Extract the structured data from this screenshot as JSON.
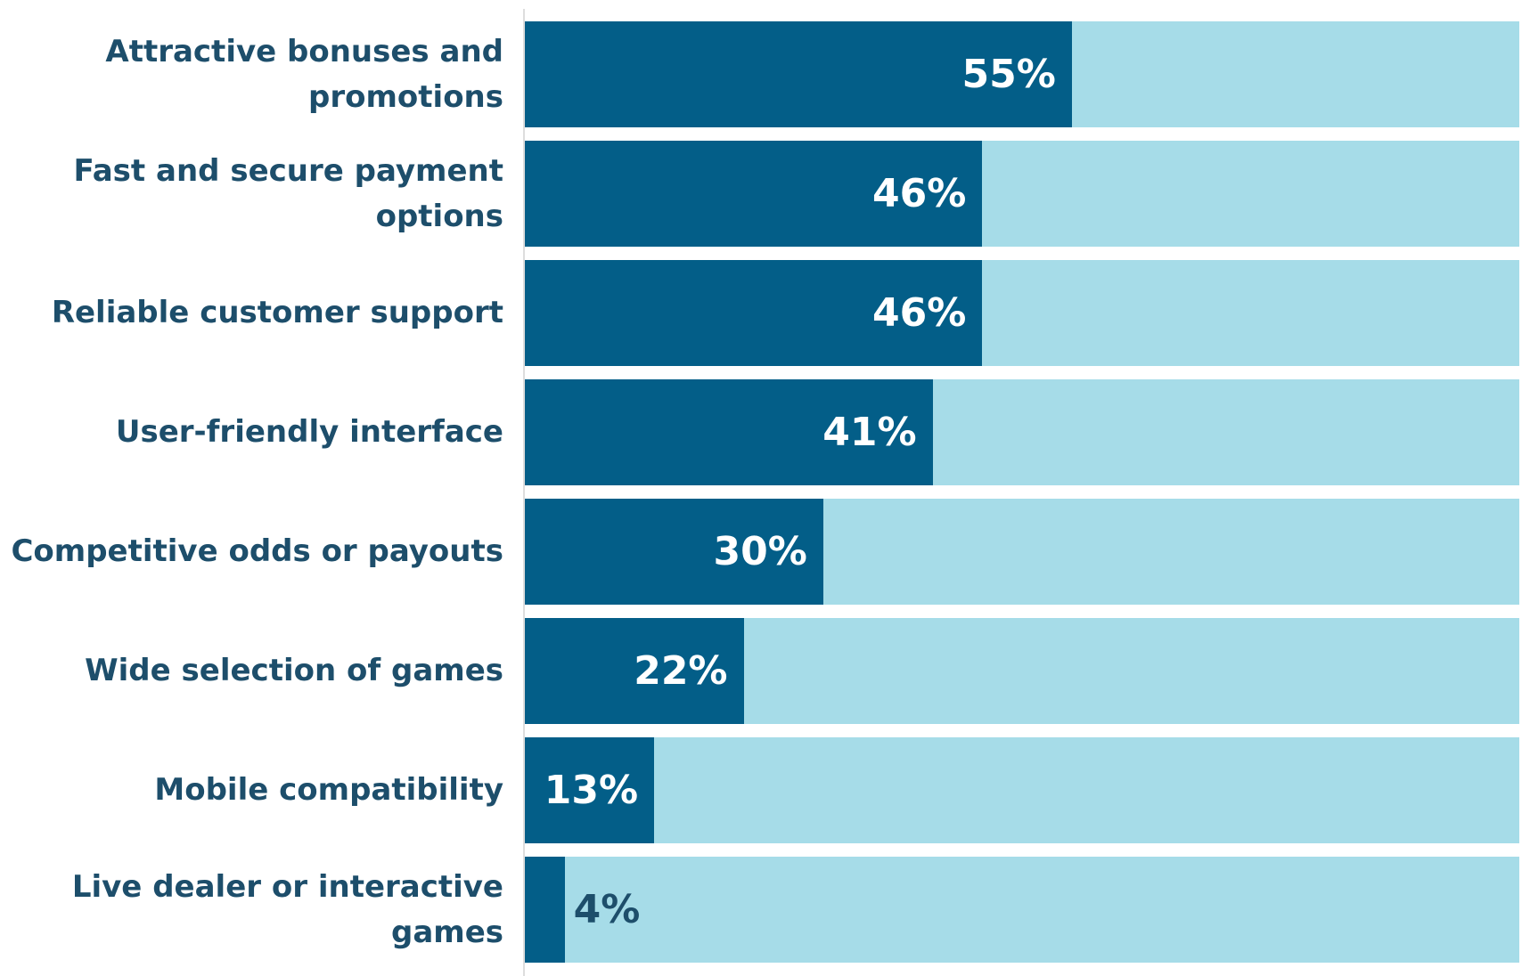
{
  "chart_data": {
    "type": "bar",
    "orientation": "horizontal",
    "categories": [
      "Attractive bonuses and promotions",
      "Fast and secure payment options",
      "Reliable customer support",
      "User-friendly interface",
      "Competitive odds or payouts",
      "Wide selection of games",
      "Mobile compatibility",
      "Live dealer or interactive games"
    ],
    "values": [
      55,
      46,
      46,
      41,
      30,
      22,
      13,
      4
    ],
    "value_labels": [
      "55%",
      "46%",
      "46%",
      "41%",
      "30%",
      "22%",
      "13%",
      "4%"
    ],
    "color": "#035e88",
    "track_color": "#a6dce8",
    "xlim": [
      0,
      100
    ]
  }
}
